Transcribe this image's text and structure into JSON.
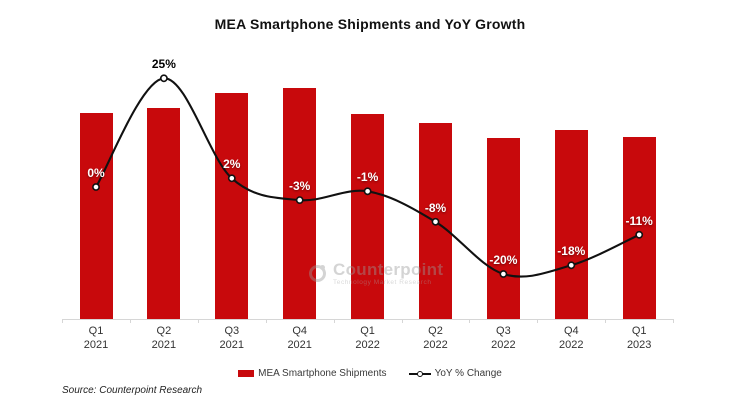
{
  "title": "MEA Smartphone Shipments and YoY Growth",
  "source_note": "Source: Counterpoint Research",
  "watermark": {
    "name": "Counterpoint",
    "tagline": "Technology Market Research"
  },
  "legend": [
    {
      "label": "MEA Smartphone Shipments",
      "swatch": "bar"
    },
    {
      "label": "YoY % Change",
      "swatch": "line-marker"
    }
  ],
  "colors": {
    "bar": "#c8090c",
    "line": "#111111",
    "marker_fill": "#ffffff",
    "marker_stroke": "#111111",
    "axis": "#d6d6d6",
    "value_label_light": "#ffffff",
    "value_label_dark": "#000000"
  },
  "chart_data": {
    "type": "bar",
    "subtype": "bar-line-combo",
    "title": "MEA Smartphone Shipments and YoY Growth",
    "categories": [
      "Q1 2021",
      "Q2 2021",
      "Q3 2021",
      "Q4 2021",
      "Q1 2022",
      "Q2 2022",
      "Q3 2022",
      "Q4 2022",
      "Q1 2023"
    ],
    "categories_two_line": [
      {
        "quarter": "Q1",
        "year": "2021"
      },
      {
        "quarter": "Q2",
        "year": "2021"
      },
      {
        "quarter": "Q3",
        "year": "2021"
      },
      {
        "quarter": "Q4",
        "year": "2021"
      },
      {
        "quarter": "Q1",
        "year": "2022"
      },
      {
        "quarter": "Q2",
        "year": "2022"
      },
      {
        "quarter": "Q3",
        "year": "2022"
      },
      {
        "quarter": "Q4",
        "year": "2022"
      },
      {
        "quarter": "Q1",
        "year": "2023"
      }
    ],
    "series": [
      {
        "name": "MEA Smartphone Shipments",
        "type": "bar",
        "values": [
          89.2,
          91.3,
          97.8,
          100,
          88.7,
          84.8,
          78.4,
          81.8,
          78.8
        ],
        "value_note": "bars carry no printed values; heights estimated relative to tallest bar (Q4 2021 = 100)"
      },
      {
        "name": "YoY % Change",
        "type": "line",
        "values": [
          0,
          25,
          2,
          -3,
          -1,
          -8,
          -20,
          -18,
          -11
        ],
        "point_labels": [
          "0%",
          "25%",
          "2%",
          "-3%",
          "-1%",
          "-8%",
          "-20%",
          "-18%",
          "-11%"
        ],
        "point_label_colors": [
          "#ffffff",
          "#000000",
          "#ffffff",
          "#ffffff",
          "#ffffff",
          "#ffffff",
          "#ffffff",
          "#ffffff",
          "#ffffff"
        ]
      }
    ],
    "xlabel": "",
    "ylabel": "",
    "y_axis_labels_shown": false,
    "gridlines": false,
    "legend_position": "bottom-center",
    "line_style": "smooth, black, white circle markers"
  }
}
